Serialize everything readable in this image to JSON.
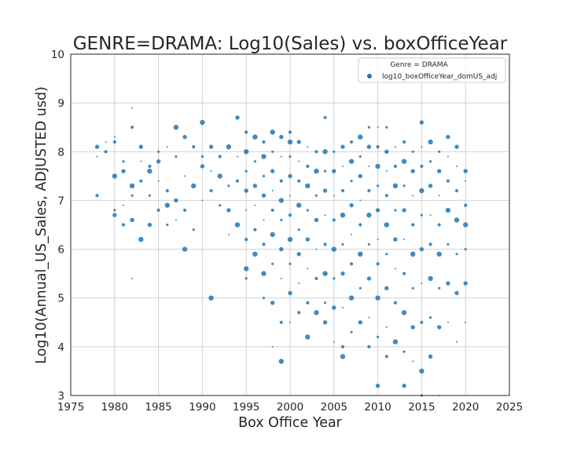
{
  "chart_data": {
    "type": "scatter",
    "title": "GENRE=DRAMA: Log10(Sales) vs. boxOfficeYear",
    "xlabel": "Box Office Year",
    "ylabel": "Log10(Annual_US_Sales, ADJUSTED usd)",
    "xlim": [
      1975,
      2025
    ],
    "ylim": [
      3,
      10
    ],
    "xticks": [
      "1975",
      "1980",
      "1985",
      "1990",
      "1995",
      "2000",
      "2005",
      "2010",
      "2015",
      "2020",
      "2025"
    ],
    "yticks": [
      "3",
      "4",
      "5",
      "6",
      "7",
      "8",
      "9",
      "10"
    ],
    "grid": true,
    "legend": {
      "title": "Genre = DRAMA",
      "placement": "top-right",
      "entries": [
        "log10_boxOfficeYear_domUS_adj"
      ]
    },
    "color": "#1f77b4",
    "series": [
      {
        "name": "log10_boxOfficeYear_domUS_adj",
        "points": [
          [
            1978,
            8.1
          ],
          [
            1978,
            7.9
          ],
          [
            1978,
            7.1
          ],
          [
            1979,
            8.2
          ],
          [
            1979,
            8.0
          ],
          [
            1980,
            8.3
          ],
          [
            1980,
            8.2
          ],
          [
            1980,
            7.5
          ],
          [
            1980,
            6.8
          ],
          [
            1980,
            6.7
          ],
          [
            1981,
            7.8
          ],
          [
            1981,
            7.6
          ],
          [
            1981,
            6.9
          ],
          [
            1981,
            6.5
          ],
          [
            1982,
            8.9
          ],
          [
            1982,
            8.5
          ],
          [
            1982,
            7.3
          ],
          [
            1982,
            7.1
          ],
          [
            1982,
            6.6
          ],
          [
            1982,
            5.4
          ],
          [
            1983,
            8.1
          ],
          [
            1983,
            7.8
          ],
          [
            1983,
            7.4
          ],
          [
            1983,
            6.2
          ],
          [
            1984,
            7.7
          ],
          [
            1984,
            7.6
          ],
          [
            1984,
            7.1
          ],
          [
            1984,
            6.5
          ],
          [
            1985,
            8.0
          ],
          [
            1985,
            7.8
          ],
          [
            1985,
            7.4
          ],
          [
            1985,
            6.8
          ],
          [
            1986,
            8.1
          ],
          [
            1986,
            7.2
          ],
          [
            1986,
            6.9
          ],
          [
            1986,
            6.5
          ],
          [
            1987,
            8.5
          ],
          [
            1987,
            7.9
          ],
          [
            1987,
            7.0
          ],
          [
            1987,
            6.6
          ],
          [
            1988,
            8.3
          ],
          [
            1988,
            7.5
          ],
          [
            1988,
            6.8
          ],
          [
            1988,
            6.0
          ],
          [
            1989,
            8.1
          ],
          [
            1989,
            7.3
          ],
          [
            1989,
            6.4
          ],
          [
            1990,
            8.6
          ],
          [
            1990,
            7.9
          ],
          [
            1990,
            7.7
          ],
          [
            1990,
            7.0
          ],
          [
            1991,
            8.1
          ],
          [
            1991,
            7.6
          ],
          [
            1991,
            7.2
          ],
          [
            1991,
            5.0
          ],
          [
            1992,
            7.9
          ],
          [
            1992,
            7.5
          ],
          [
            1992,
            6.9
          ],
          [
            1993,
            8.1
          ],
          [
            1993,
            7.3
          ],
          [
            1993,
            6.8
          ],
          [
            1993,
            6.3
          ],
          [
            1994,
            8.7
          ],
          [
            1994,
            7.9
          ],
          [
            1994,
            7.4
          ],
          [
            1994,
            6.5
          ],
          [
            1995,
            8.4
          ],
          [
            1995,
            8.0
          ],
          [
            1995,
            7.6
          ],
          [
            1995,
            7.2
          ],
          [
            1995,
            6.8
          ],
          [
            1995,
            6.2
          ],
          [
            1995,
            5.6
          ],
          [
            1995,
            5.4
          ],
          [
            1996,
            8.3
          ],
          [
            1996,
            7.8
          ],
          [
            1996,
            7.3
          ],
          [
            1996,
            6.9
          ],
          [
            1996,
            6.4
          ],
          [
            1996,
            5.9
          ],
          [
            1997,
            8.2
          ],
          [
            1997,
            7.9
          ],
          [
            1997,
            7.5
          ],
          [
            1997,
            7.1
          ],
          [
            1997,
            6.6
          ],
          [
            1997,
            6.1
          ],
          [
            1997,
            5.5
          ],
          [
            1997,
            5.0
          ],
          [
            1998,
            8.4
          ],
          [
            1998,
            8.0
          ],
          [
            1998,
            7.6
          ],
          [
            1998,
            7.2
          ],
          [
            1998,
            6.8
          ],
          [
            1998,
            6.3
          ],
          [
            1998,
            5.7
          ],
          [
            1998,
            4.9
          ],
          [
            1998,
            4.0
          ],
          [
            1999,
            8.3
          ],
          [
            1999,
            7.9
          ],
          [
            1999,
            7.4
          ],
          [
            1999,
            7.0
          ],
          [
            1999,
            6.6
          ],
          [
            1999,
            6.0
          ],
          [
            1999,
            5.4
          ],
          [
            1999,
            4.5
          ],
          [
            1999,
            3.7
          ],
          [
            2000,
            8.4
          ],
          [
            2000,
            8.2
          ],
          [
            2000,
            7.9
          ],
          [
            2000,
            7.5
          ],
          [
            2000,
            7.1
          ],
          [
            2000,
            6.7
          ],
          [
            2000,
            6.2
          ],
          [
            2000,
            5.7
          ],
          [
            2000,
            5.1
          ],
          [
            2000,
            4.5
          ],
          [
            2001,
            8.2
          ],
          [
            2001,
            7.8
          ],
          [
            2001,
            7.4
          ],
          [
            2001,
            6.9
          ],
          [
            2001,
            6.4
          ],
          [
            2001,
            5.9
          ],
          [
            2001,
            5.3
          ],
          [
            2001,
            4.7
          ],
          [
            2002,
            8.1
          ],
          [
            2002,
            7.7
          ],
          [
            2002,
            7.3
          ],
          [
            2002,
            6.8
          ],
          [
            2002,
            6.2
          ],
          [
            2002,
            5.6
          ],
          [
            2002,
            4.9
          ],
          [
            2002,
            4.2
          ],
          [
            2003,
            8.0
          ],
          [
            2003,
            7.6
          ],
          [
            2003,
            7.1
          ],
          [
            2003,
            6.6
          ],
          [
            2003,
            6.0
          ],
          [
            2003,
            5.4
          ],
          [
            2003,
            4.7
          ],
          [
            2004,
            8.7
          ],
          [
            2004,
            8.0
          ],
          [
            2004,
            7.6
          ],
          [
            2004,
            7.2
          ],
          [
            2004,
            6.7
          ],
          [
            2004,
            6.1
          ],
          [
            2004,
            5.5
          ],
          [
            2004,
            4.9
          ],
          [
            2004,
            4.5
          ],
          [
            2005,
            8.0
          ],
          [
            2005,
            7.6
          ],
          [
            2005,
            7.1
          ],
          [
            2005,
            6.6
          ],
          [
            2005,
            6.0
          ],
          [
            2005,
            5.4
          ],
          [
            2005,
            4.8
          ],
          [
            2005,
            4.1
          ],
          [
            2006,
            8.1
          ],
          [
            2006,
            7.7
          ],
          [
            2006,
            7.2
          ],
          [
            2006,
            6.7
          ],
          [
            2006,
            6.1
          ],
          [
            2006,
            5.5
          ],
          [
            2006,
            4.8
          ],
          [
            2006,
            4.0
          ],
          [
            2006,
            3.8
          ],
          [
            2007,
            8.2
          ],
          [
            2007,
            7.8
          ],
          [
            2007,
            7.4
          ],
          [
            2007,
            6.9
          ],
          [
            2007,
            6.3
          ],
          [
            2007,
            5.7
          ],
          [
            2007,
            5.0
          ],
          [
            2007,
            4.3
          ],
          [
            2008,
            8.3
          ],
          [
            2008,
            7.9
          ],
          [
            2008,
            7.5
          ],
          [
            2008,
            7.0
          ],
          [
            2008,
            6.5
          ],
          [
            2008,
            5.9
          ],
          [
            2008,
            5.2
          ],
          [
            2008,
            4.5
          ],
          [
            2009,
            8.5
          ],
          [
            2009,
            8.1
          ],
          [
            2009,
            7.7
          ],
          [
            2009,
            7.2
          ],
          [
            2009,
            6.7
          ],
          [
            2009,
            6.1
          ],
          [
            2009,
            5.4
          ],
          [
            2009,
            4.6
          ],
          [
            2009,
            4.0
          ],
          [
            2010,
            8.5
          ],
          [
            2010,
            8.1
          ],
          [
            2010,
            7.7
          ],
          [
            2010,
            7.3
          ],
          [
            2010,
            6.8
          ],
          [
            2010,
            6.2
          ],
          [
            2010,
            5.7
          ],
          [
            2010,
            5.0
          ],
          [
            2010,
            4.2
          ],
          [
            2010,
            3.2
          ],
          [
            2011,
            8.5
          ],
          [
            2011,
            8.0
          ],
          [
            2011,
            7.6
          ],
          [
            2011,
            7.1
          ],
          [
            2011,
            6.5
          ],
          [
            2011,
            5.9
          ],
          [
            2011,
            5.2
          ],
          [
            2011,
            4.4
          ],
          [
            2011,
            3.8
          ],
          [
            2012,
            8.1
          ],
          [
            2012,
            7.7
          ],
          [
            2012,
            7.3
          ],
          [
            2012,
            6.8
          ],
          [
            2012,
            6.2
          ],
          [
            2012,
            5.6
          ],
          [
            2012,
            4.9
          ],
          [
            2012,
            4.1
          ],
          [
            2013,
            8.2
          ],
          [
            2013,
            7.8
          ],
          [
            2013,
            7.3
          ],
          [
            2013,
            6.8
          ],
          [
            2013,
            6.2
          ],
          [
            2013,
            5.5
          ],
          [
            2013,
            4.7
          ],
          [
            2013,
            3.9
          ],
          [
            2013,
            3.2
          ],
          [
            2014,
            8.0
          ],
          [
            2014,
            7.6
          ],
          [
            2014,
            7.1
          ],
          [
            2014,
            6.5
          ],
          [
            2014,
            5.9
          ],
          [
            2014,
            5.2
          ],
          [
            2014,
            4.4
          ],
          [
            2014,
            3.7
          ],
          [
            2015,
            8.6
          ],
          [
            2015,
            8.1
          ],
          [
            2015,
            7.7
          ],
          [
            2015,
            7.2
          ],
          [
            2015,
            6.7
          ],
          [
            2015,
            6.0
          ],
          [
            2015,
            5.3
          ],
          [
            2015,
            4.5
          ],
          [
            2015,
            3.5
          ],
          [
            2015,
            3.0
          ],
          [
            2016,
            8.2
          ],
          [
            2016,
            7.8
          ],
          [
            2016,
            7.3
          ],
          [
            2016,
            6.7
          ],
          [
            2016,
            6.1
          ],
          [
            2016,
            5.4
          ],
          [
            2016,
            4.6
          ],
          [
            2016,
            3.8
          ],
          [
            2017,
            8.0
          ],
          [
            2017,
            7.6
          ],
          [
            2017,
            7.1
          ],
          [
            2017,
            6.5
          ],
          [
            2017,
            5.9
          ],
          [
            2017,
            5.2
          ],
          [
            2017,
            4.4
          ],
          [
            2017,
            3.0
          ],
          [
            2018,
            8.3
          ],
          [
            2018,
            7.9
          ],
          [
            2018,
            7.4
          ],
          [
            2018,
            6.8
          ],
          [
            2018,
            6.1
          ],
          [
            2018,
            5.3
          ],
          [
            2018,
            4.5
          ],
          [
            2019,
            8.1
          ],
          [
            2019,
            7.7
          ],
          [
            2019,
            7.2
          ],
          [
            2019,
            6.6
          ],
          [
            2019,
            5.9
          ],
          [
            2019,
            5.1
          ],
          [
            2019,
            4.1
          ],
          [
            2020,
            7.6
          ],
          [
            2020,
            7.4
          ],
          [
            2020,
            6.9
          ],
          [
            2020,
            6.5
          ],
          [
            2020,
            6.0
          ],
          [
            2020,
            5.3
          ],
          [
            2020,
            4.5
          ]
        ]
      }
    ]
  }
}
